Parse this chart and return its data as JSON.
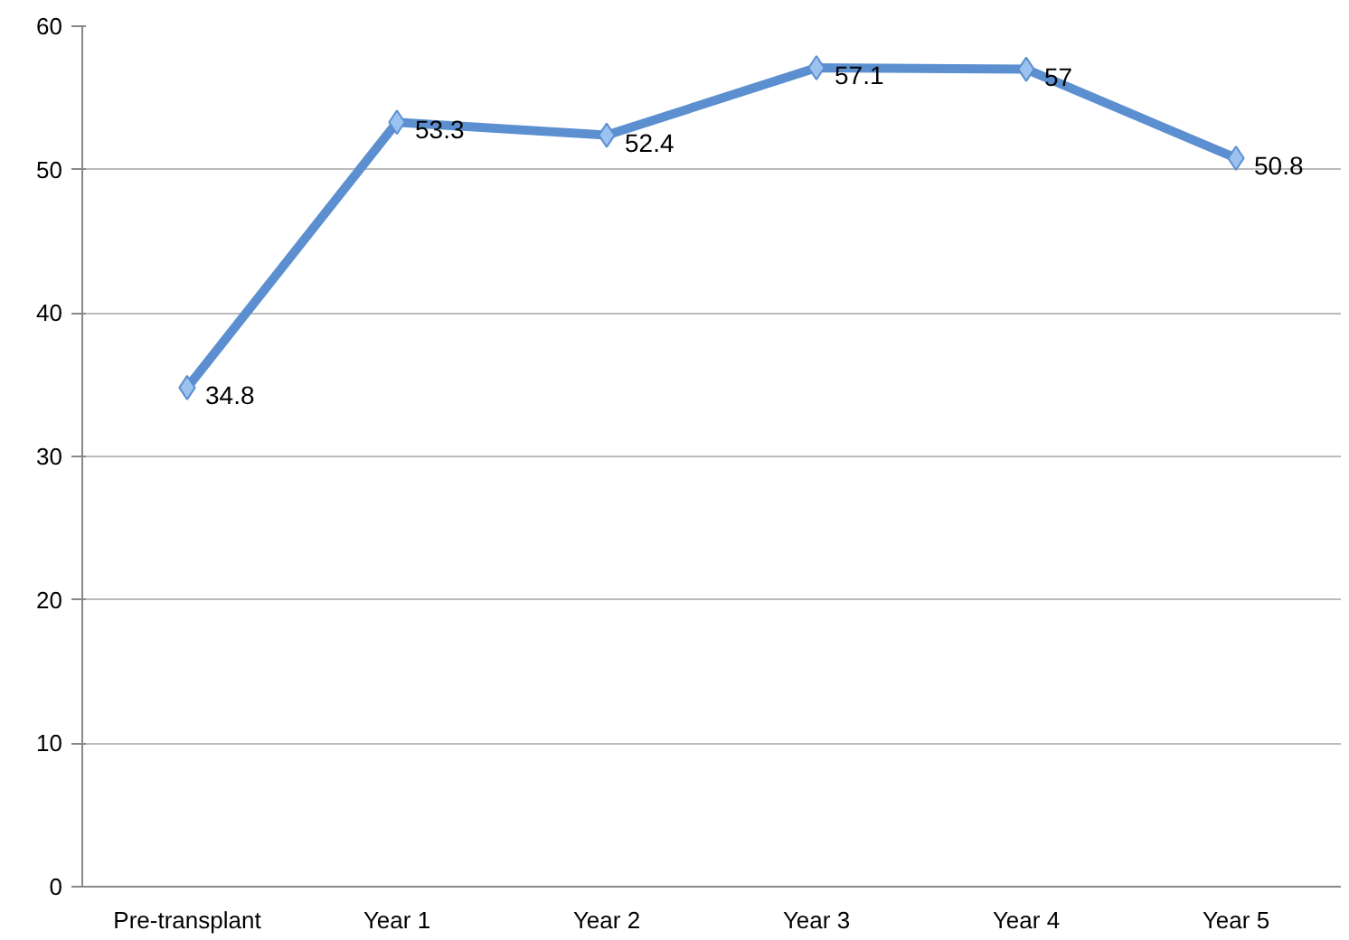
{
  "chart_data": {
    "type": "line",
    "categories": [
      "Pre-transplant",
      "Year 1",
      "Year 2",
      "Year 3",
      "Year 4",
      "Year 5"
    ],
    "series": [
      {
        "color": "#5b8fd0",
        "values": [
          34.8,
          53.3,
          52.4,
          57.1,
          57,
          50.8
        ]
      }
    ],
    "ylim": [
      0,
      60
    ],
    "yticks": [
      0,
      10,
      20,
      30,
      40,
      50,
      60
    ],
    "grid": "y",
    "marker": "diamond",
    "line_style": "solid",
    "data_labels": true
  }
}
